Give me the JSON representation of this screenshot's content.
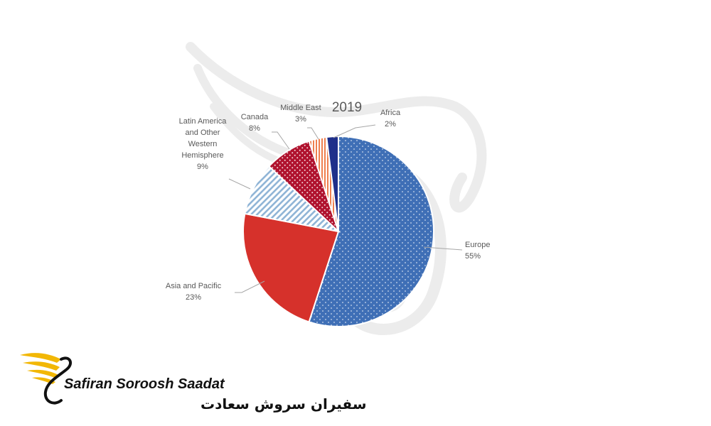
{
  "chart_data": {
    "type": "pie",
    "title": "2019",
    "unit": "%",
    "slices": [
      {
        "label": "Europe",
        "value": 55,
        "color": "#3f6fb6",
        "pattern": "dots"
      },
      {
        "label": "Asia and Pacific",
        "value": 23,
        "color": "#d6312b",
        "pattern": "solid"
      },
      {
        "label": "Latin America and Other Western Hemisphere",
        "label_lines": [
          "Latin America",
          "and Other",
          "Western",
          "Hemisphere"
        ],
        "value": 9,
        "color": "#8fb4d6",
        "pattern": "diagonal-stripes"
      },
      {
        "label": "Canada",
        "value": 8,
        "color": "#b0122e",
        "pattern": "dots"
      },
      {
        "label": "Middle East",
        "value": 3,
        "color": "#ef7f4e",
        "pattern": "vertical-stripes"
      },
      {
        "label": "Africa",
        "value": 2,
        "color": "#1f2f8a",
        "pattern": "solid"
      }
    ]
  },
  "brand": {
    "name_en": "Safiran Soroosh Saadat",
    "name_fa": "سفیران سروش سعادت",
    "colors": {
      "wing": "#f2b705",
      "text": "#111111"
    }
  },
  "icons": [
    "wing-logo-icon",
    "swan-watermark-icon"
  ]
}
